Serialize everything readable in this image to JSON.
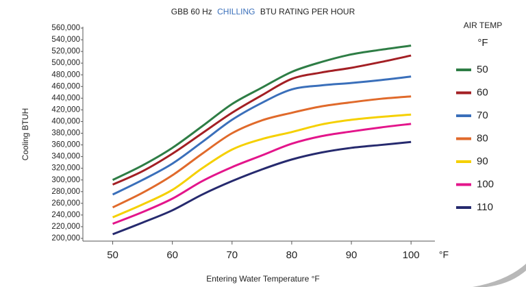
{
  "chart_data": {
    "type": "line",
    "title": [
      "GBB 60 Hz",
      "CHILLING",
      "BTU RATING PER HOUR"
    ],
    "title_highlight_color": "#3a6fba",
    "x_label": "Entering Water Temperature °F",
    "y_label": "Cooling BTUH",
    "x_unit_label": "°F",
    "legend_title": [
      "AIR TEMP",
      "°F"
    ],
    "x": [
      50,
      55,
      60,
      65,
      70,
      75,
      80,
      85,
      90,
      95,
      100
    ],
    "series": [
      {
        "name": "50",
        "color": "#2e7d45",
        "values": [
          300000,
          325000,
          355000,
          392000,
          430000,
          458000,
          485000,
          502000,
          515000,
          523000,
          530000
        ]
      },
      {
        "name": "60",
        "color": "#a31f24",
        "values": [
          292000,
          315000,
          345000,
          380000,
          415000,
          445000,
          473000,
          484000,
          492000,
          502000,
          513000
        ]
      },
      {
        "name": "70",
        "color": "#3a6fba",
        "values": [
          275000,
          300000,
          328000,
          365000,
          403000,
          432000,
          455000,
          462000,
          466000,
          471000,
          477000
        ]
      },
      {
        "name": "80",
        "color": "#e06a2b",
        "values": [
          253000,
          278000,
          308000,
          345000,
          380000,
          402000,
          415000,
          426000,
          433000,
          439000,
          443000
        ]
      },
      {
        "name": "90",
        "color": "#f5d000",
        "values": [
          236000,
          258000,
          283000,
          320000,
          352000,
          370000,
          382000,
          395000,
          403000,
          408000,
          412000
        ]
      },
      {
        "name": "100",
        "color": "#e3158b",
        "values": [
          225000,
          245000,
          268000,
          298000,
          322000,
          342000,
          362000,
          375000,
          383000,
          390000,
          396000
        ]
      },
      {
        "name": "110",
        "color": "#262a6e",
        "values": [
          207000,
          227000,
          248000,
          275000,
          298000,
          318000,
          335000,
          347000,
          355000,
          360000,
          365000
        ]
      }
    ],
    "xlim": [
      45,
      104
    ],
    "xticks": [
      50,
      60,
      70,
      80,
      90,
      100
    ],
    "ylim": [
      200000,
      560000
    ],
    "yticks": [
      {
        "value": 200000,
        "label": "200,000"
      },
      {
        "value": 220000,
        "label": "220,000"
      },
      {
        "value": 240000,
        "label": "240,000"
      },
      {
        "value": 260000,
        "label": "260,000"
      },
      {
        "value": 280000,
        "label": "280,000"
      },
      {
        "value": 300000,
        "label": "300,000"
      },
      {
        "value": 320000,
        "label": "320,000"
      },
      {
        "value": 340000,
        "label": "340,000"
      },
      {
        "value": 360000,
        "label": "360,000"
      },
      {
        "value": 380000,
        "label": "380,000"
      },
      {
        "value": 400000,
        "label": "400,000"
      },
      {
        "value": 420000,
        "label": "420,000"
      },
      {
        "value": 440000,
        "label": "440,000"
      },
      {
        "value": 460000,
        "label": "460,000"
      },
      {
        "value": 480000,
        "label": "480,000"
      },
      {
        "value": 500000,
        "label": "500,000"
      },
      {
        "value": 520000,
        "label": "520,000"
      },
      {
        "value": 540000,
        "label": "540,000"
      },
      {
        "value": 560000,
        "label": "560,000"
      }
    ],
    "grid": false,
    "legend": "right"
  }
}
